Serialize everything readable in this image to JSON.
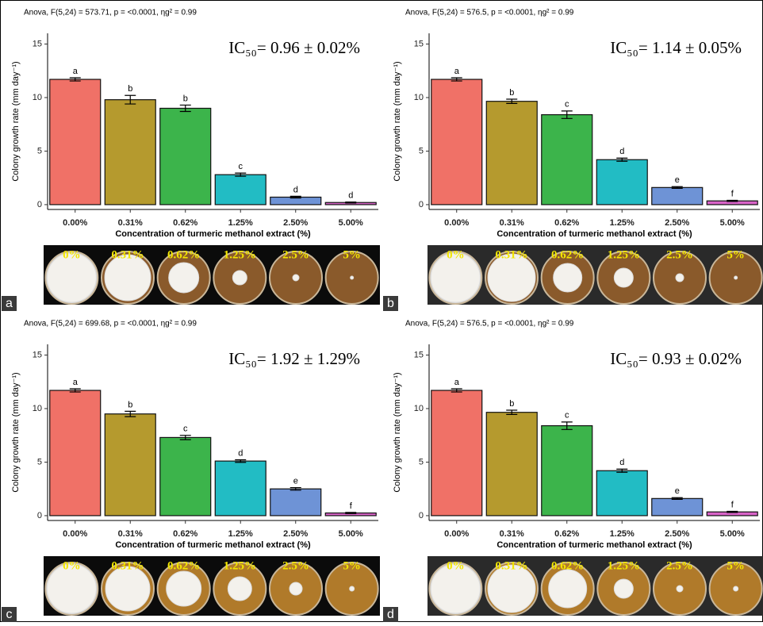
{
  "chart_data": [
    {
      "type": "bar",
      "panel_label": "a",
      "subtitle": "Anova, F(5,24) = 573.71, p = <0.0001, ηg² = 0.99",
      "annotation": "IC₅₀= 0.96 ± 0.02%",
      "xlabel": "Concentration of turmeric methanol extract (%)",
      "ylabel": "Colony growth rate (mm day⁻¹)",
      "categories": [
        "0.00%",
        "0.31%",
        "0.62%",
        "1.25%",
        "2.50%",
        "5.00%"
      ],
      "values": [
        11.7,
        9.8,
        9.0,
        2.8,
        0.7,
        0.2
      ],
      "errors": [
        0.15,
        0.4,
        0.3,
        0.15,
        0.08,
        0.05
      ],
      "significance_labels": [
        "a",
        "b",
        "b",
        "c",
        "d",
        "d"
      ],
      "colors": [
        "#f07167",
        "#b59a2e",
        "#3cb44b",
        "#22bcc4",
        "#6e93d6",
        "#d863c8"
      ],
      "ylim": [
        -0.45,
        16
      ],
      "yticks": [
        0,
        5,
        10,
        15
      ],
      "photo_labels": [
        "0%",
        "0.31%",
        "0.62%",
        "1.25%",
        "2.5%",
        "5%"
      ]
    },
    {
      "type": "bar",
      "panel_label": "b",
      "subtitle": "Anova, F(5,24) = 576.5, p = <0.0001, ηg² = 0.99",
      "annotation": "IC₅₀= 1.14 ± 0.05%",
      "xlabel": "Concentration of turmeric methanol extract (%)",
      "ylabel": "Colony growth rate (mm day⁻¹)",
      "categories": [
        "0.00%",
        "0.31%",
        "0.62%",
        "1.25%",
        "2.50%",
        "5.00%"
      ],
      "values": [
        11.7,
        9.65,
        8.4,
        4.2,
        1.6,
        0.35
      ],
      "errors": [
        0.15,
        0.2,
        0.35,
        0.15,
        0.08,
        0.05
      ],
      "significance_labels": [
        "a",
        "b",
        "c",
        "d",
        "e",
        "f"
      ],
      "colors": [
        "#f07167",
        "#b59a2e",
        "#3cb44b",
        "#22bcc4",
        "#6e93d6",
        "#d863c8"
      ],
      "ylim": [
        -0.45,
        16
      ],
      "yticks": [
        0,
        5,
        10,
        15
      ],
      "photo_labels": [
        "0%",
        "0.31%",
        "0.62%",
        "1.25%",
        "2.5%",
        "5%"
      ]
    },
    {
      "type": "bar",
      "panel_label": "c",
      "subtitle": "Anova, F(5,24) = 699.68, p = <0.0001, ηg² = 0.99",
      "annotation": "IC₅₀=  1.92 ± 1.29%",
      "xlabel": "Concentration of turmeric methanol extract (%)",
      "ylabel": "Colony growth rate (mm day⁻¹)",
      "categories": [
        "0.00%",
        "0.31%",
        "0.62%",
        "1.25%",
        "2.50%",
        "5.00%"
      ],
      "values": [
        11.7,
        9.5,
        7.3,
        5.1,
        2.5,
        0.25
      ],
      "errors": [
        0.15,
        0.25,
        0.2,
        0.12,
        0.12,
        0.05
      ],
      "significance_labels": [
        "a",
        "b",
        "c",
        "d",
        "e",
        "f"
      ],
      "colors": [
        "#f07167",
        "#b59a2e",
        "#3cb44b",
        "#22bcc4",
        "#6e93d6",
        "#d863c8"
      ],
      "ylim": [
        -0.45,
        16
      ],
      "yticks": [
        0,
        5,
        10,
        15
      ],
      "photo_labels": [
        "0%",
        "0.31%",
        "0.62%",
        "1.25%",
        "2.5%",
        "5%"
      ]
    },
    {
      "type": "bar",
      "panel_label": "d",
      "subtitle": "Anova, F(5,24) = 576.5, p = <0.0001, ηg² = 0.99",
      "annotation": "IC₅₀= 0.93 ±  0.02%",
      "xlabel": "Concentration of turmeric methanol extract (%)",
      "ylabel": "Colony growth rate (mm day⁻¹)",
      "categories": [
        "0.00%",
        "0.31%",
        "0.62%",
        "1.25%",
        "2.50%",
        "5.00%"
      ],
      "values": [
        11.7,
        9.65,
        8.4,
        4.2,
        1.6,
        0.35
      ],
      "errors": [
        0.15,
        0.2,
        0.35,
        0.15,
        0.08,
        0.05
      ],
      "significance_labels": [
        "a",
        "b",
        "c",
        "d",
        "e",
        "f"
      ],
      "colors": [
        "#f07167",
        "#b59a2e",
        "#3cb44b",
        "#22bcc4",
        "#6e93d6",
        "#d863c8"
      ],
      "ylim": [
        -0.45,
        16
      ],
      "yticks": [
        0,
        5,
        10,
        15
      ],
      "photo_labels": [
        "0%",
        "0.31%",
        "0.62%",
        "1.25%",
        "2.5%",
        "5%"
      ]
    }
  ]
}
